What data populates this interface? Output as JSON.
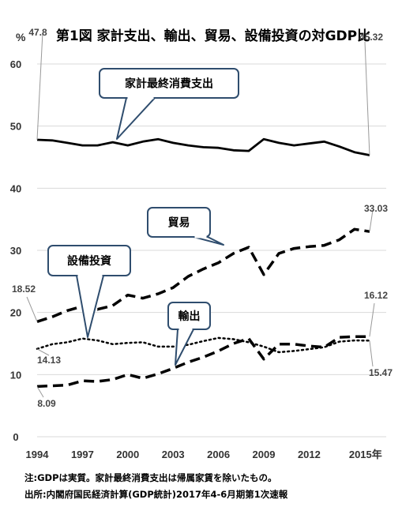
{
  "title": "第1図  家計支出、輸出、貿易、設備投資の対GDP比",
  "chart_data": {
    "type": "line",
    "unit": "%",
    "ylim": [
      0,
      60
    ],
    "yticks": [
      0,
      10,
      20,
      30,
      40,
      50,
      60
    ],
    "x": [
      1994,
      1995,
      1996,
      1997,
      1998,
      1999,
      2000,
      2001,
      2002,
      2003,
      2004,
      2005,
      2006,
      2007,
      2008,
      2009,
      2010,
      2011,
      2012,
      2013,
      2014,
      2015,
      2016
    ],
    "xticks": [
      "1994",
      "1997",
      "2000",
      "2003",
      "2006",
      "2009",
      "2012",
      "2015年"
    ],
    "grid": "horizontal",
    "series": [
      {
        "name": "家計最終消費支出",
        "style": "solid",
        "color": "#000000",
        "values": [
          47.8,
          47.7,
          47.3,
          46.9,
          46.9,
          47.4,
          46.9,
          47.5,
          47.9,
          47.3,
          46.9,
          46.6,
          46.5,
          46.1,
          46.0,
          47.9,
          47.3,
          46.9,
          47.2,
          47.5,
          46.7,
          45.8,
          45.32
        ],
        "start_label": "47.8",
        "end_label": "45.32",
        "callout": "家計最終消費支出"
      },
      {
        "name": "貿易",
        "style": "dashed",
        "color": "#000000",
        "values": [
          18.52,
          19.3,
          20.3,
          21.0,
          20.5,
          21.1,
          22.8,
          22.3,
          23.0,
          24.0,
          25.8,
          27.0,
          28.0,
          29.5,
          30.5,
          26.1,
          29.5,
          30.3,
          30.6,
          30.8,
          31.7,
          33.4,
          33.03
        ],
        "start_label": "18.52",
        "end_label": "33.03",
        "callout": "貿易"
      },
      {
        "name": "輸出",
        "style": "dashed",
        "color": "#000000",
        "values": [
          8.09,
          8.2,
          8.3,
          9.0,
          8.9,
          9.2,
          10.0,
          9.4,
          10.1,
          11.0,
          12.0,
          12.8,
          13.8,
          15.0,
          15.8,
          12.5,
          14.9,
          14.9,
          14.6,
          14.4,
          16.0,
          16.1,
          16.12
        ],
        "start_label": "8.09",
        "end_label": "16.12",
        "callout": "輸出"
      },
      {
        "name": "設備投資",
        "style": "dotted",
        "color": "#000000",
        "values": [
          14.13,
          14.9,
          15.2,
          15.8,
          15.5,
          14.9,
          15.1,
          15.2,
          14.5,
          14.5,
          14.8,
          15.4,
          15.9,
          15.7,
          15.2,
          14.5,
          13.6,
          13.8,
          14.1,
          14.4,
          15.3,
          15.5,
          15.47
        ],
        "start_label": "14.13",
        "end_label": "15.47",
        "callout": "設備投資"
      }
    ]
  },
  "notes": {
    "note1": "注:GDPは実質。家計最終消費支出は帰属家賃を除いたもの。",
    "note2": "出所:内閣府国民経済計算(GDP統計)2017年4-6月期第1次速報"
  }
}
